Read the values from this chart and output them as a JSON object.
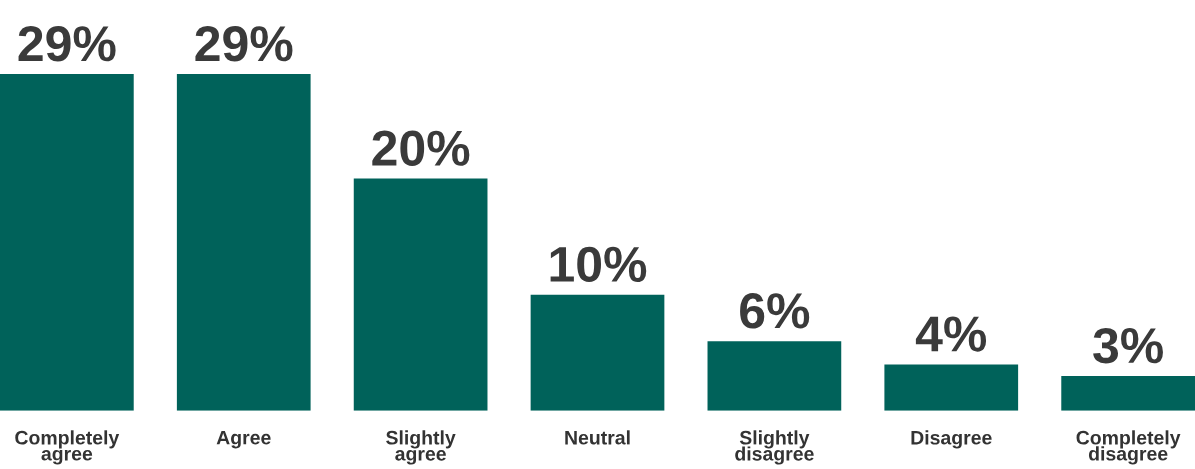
{
  "chart_data": {
    "type": "bar",
    "categories": [
      "Completely\nagree",
      "Agree",
      "Slightly\nagree",
      "Neutral",
      "Slightly\ndisagree",
      "Disagree",
      "Completely\ndisagree"
    ],
    "values": [
      29,
      29,
      20,
      10,
      6,
      4,
      3
    ],
    "value_labels": [
      "29%",
      "29%",
      "20%",
      "10%",
      "6%",
      "4%",
      "3%"
    ],
    "color": "#00625a",
    "grid": false,
    "legend": false
  }
}
